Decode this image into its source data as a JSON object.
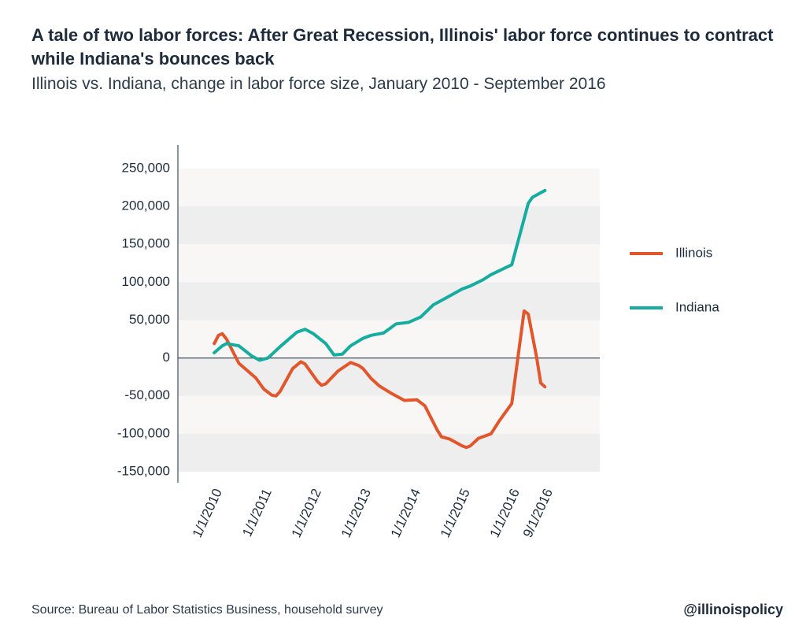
{
  "chart_data": {
    "type": "line",
    "title": "A tale of two labor forces: After Great Recession, Illinois' labor force continues to contract while Indiana's bounces back",
    "subtitle": "Illinois vs. Indiana, change in labor force size, January 2010 - September 2016",
    "source": "Source: Bureau of Labor Statistics Business, household survey",
    "credit": "@illinoispolicy",
    "xlim": [
      "2009-04-08",
      "2017-10-10"
    ],
    "xticks": [
      {
        "value": "2010-01-01",
        "label": "1/1/2010"
      },
      {
        "value": "2011-01-01",
        "label": "1/1/2011"
      },
      {
        "value": "2012-01-01",
        "label": "1/1/2012"
      },
      {
        "value": "2013-01-01",
        "label": "1/1/2013"
      },
      {
        "value": "2014-01-01",
        "label": "1/1/2014"
      },
      {
        "value": "2015-01-01",
        "label": "1/1/2015"
      },
      {
        "value": "2016-01-01",
        "label": "1/1/2016"
      },
      {
        "value": "2016-09-01",
        "label": "9/1/2016"
      }
    ],
    "ylim": [
      -150000,
      250000
    ],
    "yticks": [
      {
        "value": 250000,
        "label": "250,000"
      },
      {
        "value": 200000,
        "label": "200,000"
      },
      {
        "value": 150000,
        "label": "150,000"
      },
      {
        "value": 100000,
        "label": "100,000"
      },
      {
        "value": 50000,
        "label": "50,000"
      },
      0,
      {
        "value": -50000,
        "label": "-50,000"
      },
      {
        "value": -100000,
        "label": "-100,000"
      },
      {
        "value": -150000,
        "label": "-150,000"
      }
    ],
    "legend": "right",
    "series": [
      {
        "name": "Illinois",
        "color": "#e2562c",
        "x": [
          "2010-01-01",
          "2010-02-01",
          "2010-03-01",
          "2010-04-01",
          "2010-07-01",
          "2010-11-01",
          "2011-01-01",
          "2011-03-01",
          "2011-04-01",
          "2011-05-01",
          "2011-08-01",
          "2011-10-01",
          "2011-11-01",
          "2012-02-01",
          "2012-03-01",
          "2012-04-01",
          "2012-07-01",
          "2012-10-01",
          "2012-12-01",
          "2013-01-01",
          "2013-03-01",
          "2013-05-01",
          "2013-08-01",
          "2013-11-01",
          "2014-02-01",
          "2014-04-01",
          "2014-07-01",
          "2014-08-01",
          "2014-10-01",
          "2015-01-01",
          "2015-02-01",
          "2015-03-01",
          "2015-05-01",
          "2015-08-01",
          "2015-10-01",
          "2016-01-01",
          "2016-04-01",
          "2016-05-01",
          "2016-07-01",
          "2016-08-01",
          "2016-09-01"
        ],
        "values": [
          19000,
          30000,
          32000,
          25000,
          -7000,
          -26000,
          -41000,
          -49000,
          -50000,
          -44000,
          -14000,
          -5000,
          -8000,
          -31000,
          -36000,
          -34000,
          -17000,
          -6000,
          -10000,
          -14000,
          -27000,
          -37000,
          -47000,
          -56000,
          -55000,
          -63000,
          -95000,
          -104000,
          -107000,
          -116000,
          -118000,
          -116000,
          -106000,
          -100000,
          -83000,
          -60000,
          62000,
          58000,
          2000,
          -33000,
          -38000
        ]
      },
      {
        "name": "Indiana",
        "color": "#17aca0",
        "x": [
          "2010-01-01",
          "2010-03-01",
          "2010-04-01",
          "2010-07-01",
          "2010-10-01",
          "2010-12-01",
          "2011-02-01",
          "2011-05-01",
          "2011-09-01",
          "2011-11-01",
          "2012-01-01",
          "2012-04-01",
          "2012-06-01",
          "2012-08-01",
          "2012-10-01",
          "2013-01-01",
          "2013-03-01",
          "2013-06-01",
          "2013-09-01",
          "2013-12-01",
          "2014-03-01",
          "2014-06-01",
          "2014-09-01",
          "2015-01-01",
          "2015-03-01",
          "2015-06-01",
          "2015-08-01",
          "2016-01-01",
          "2016-05-01",
          "2016-06-01",
          "2016-08-01",
          "2016-09-01"
        ],
        "values": [
          7000,
          16000,
          19000,
          16000,
          3000,
          -3000,
          0,
          15000,
          34000,
          38000,
          32000,
          19000,
          4000,
          5000,
          16000,
          26000,
          30000,
          33000,
          45000,
          47000,
          54000,
          70000,
          79000,
          91000,
          95000,
          103000,
          110000,
          123000,
          204000,
          212000,
          218000,
          221000
        ]
      }
    ]
  }
}
